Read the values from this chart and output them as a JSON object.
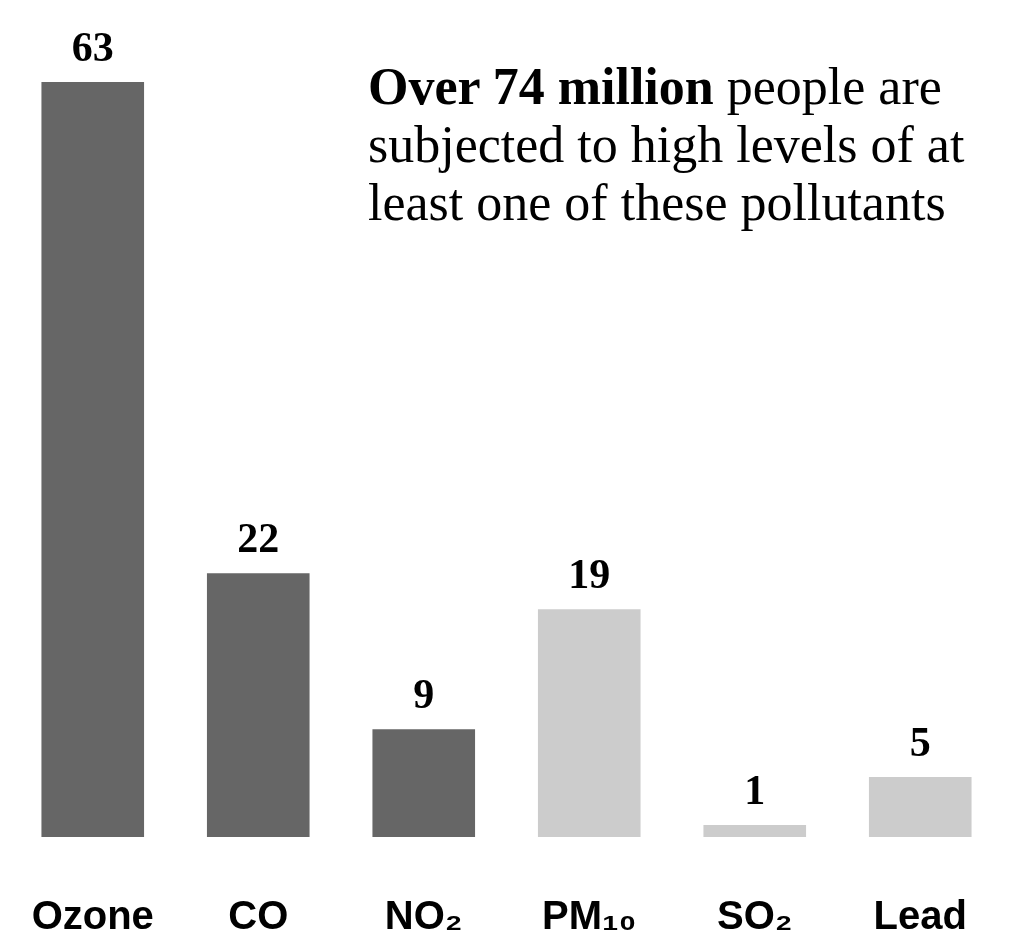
{
  "chart_data": {
    "type": "bar",
    "categories": [
      "Ozone",
      "CO",
      "NO₂",
      "PM₁₀",
      "SO₂",
      "Lead"
    ],
    "values": [
      63,
      22,
      9,
      19,
      1,
      5
    ],
    "colors": [
      "#666666",
      "#666666",
      "#666666",
      "#cccccc",
      "#cccccc",
      "#cccccc"
    ],
    "data_labels": true,
    "annotations": [
      "Over 74 million",
      "people are subjected to high levels of at least one of these pollutants"
    ]
  }
}
